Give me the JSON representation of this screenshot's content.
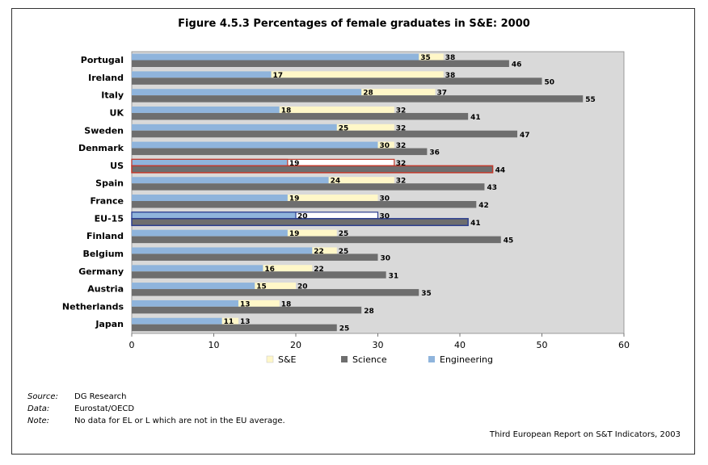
{
  "chart_data": {
    "type": "bar",
    "title": "Figure 4.5.3 Percentages of female graduates in S&E: 2000",
    "categories": [
      "Portugal",
      "Ireland",
      "Italy",
      "UK",
      "Sweden",
      "Denmark",
      "US",
      "Spain",
      "France",
      "EU-15",
      "Finland",
      "Belgium",
      "Germany",
      "Austria",
      "Netherlands",
      "Japan"
    ],
    "series": [
      {
        "name": "S&E",
        "color": "#fff7c8",
        "values": [
          38,
          38,
          37,
          32,
          32,
          32,
          32,
          32,
          30,
          30,
          25,
          25,
          22,
          20,
          18,
          13
        ]
      },
      {
        "name": "Science",
        "color": "#6e6e6e",
        "values": [
          46,
          50,
          55,
          41,
          47,
          36,
          44,
          43,
          42,
          41,
          45,
          30,
          31,
          35,
          28,
          25
        ]
      },
      {
        "name": "Engineering",
        "color": "#8fb4dc",
        "values": [
          35,
          17,
          28,
          18,
          25,
          30,
          19,
          24,
          19,
          20,
          19,
          22,
          16,
          15,
          13,
          11
        ]
      }
    ],
    "xlim": [
      0,
      60
    ],
    "xticks": [
      0,
      10,
      20,
      30,
      40,
      50,
      60
    ],
    "highlight": {
      "US": "#c0392b",
      "EU-15": "#2c3e8f"
    },
    "legend_position": "bottom",
    "grid": false
  },
  "footer": {
    "source_label": "Source:",
    "source": "DG Research",
    "data_label": "Data:",
    "data": "Eurostat/OECD",
    "note_label": "Note:",
    "note": "No data for EL or L which are not in the EU average.",
    "report": "Third European Report on S&T Indicators, 2003"
  }
}
